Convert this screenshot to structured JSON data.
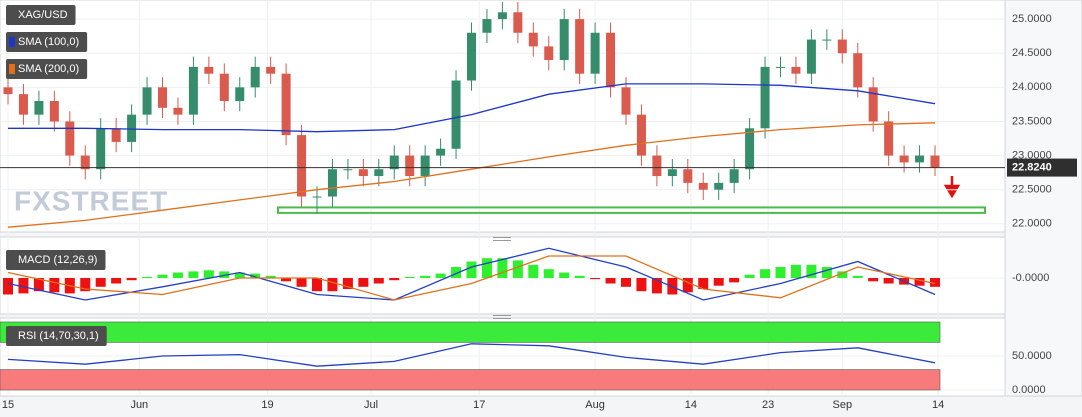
{
  "chart_data": [
    {
      "type": "candlestick",
      "title": "XAG/USD",
      "watermark": "FXSTREET",
      "open": [
        24.0,
        23.9,
        23.6,
        23.8,
        23.5,
        23.0,
        22.8,
        23.4,
        23.2,
        23.6,
        24.0,
        23.7,
        23.6,
        24.3,
        24.2,
        23.8,
        24.0,
        24.3,
        24.2,
        23.3,
        22.4,
        22.4,
        22.8,
        22.8,
        22.7,
        22.8,
        23.0,
        22.7,
        23.0,
        23.1,
        24.1,
        24.8,
        25.0,
        25.1,
        24.8,
        24.6,
        24.4,
        25.0,
        24.2,
        24.8,
        24.0,
        23.6,
        23.0,
        22.7,
        22.8,
        22.6,
        22.5,
        22.6,
        22.8,
        23.4,
        24.3,
        24.3,
        24.2,
        24.7,
        24.7,
        24.5,
        24.0,
        23.5,
        23.0,
        22.9,
        23.0
      ],
      "high": [
        24.15,
        24.05,
        23.95,
        23.95,
        23.65,
        23.15,
        23.55,
        23.55,
        23.75,
        24.15,
        24.15,
        23.85,
        24.45,
        24.45,
        24.35,
        24.15,
        24.45,
        24.45,
        24.35,
        23.45,
        22.55,
        22.95,
        22.95,
        22.95,
        22.95,
        23.15,
        23.15,
        23.15,
        23.25,
        24.25,
        24.95,
        25.15,
        25.25,
        25.25,
        24.95,
        24.75,
        25.15,
        25.15,
        24.95,
        24.95,
        24.15,
        23.75,
        23.15,
        22.95,
        22.95,
        22.75,
        22.75,
        22.95,
        23.55,
        24.45,
        24.45,
        24.45,
        24.85,
        24.85,
        24.85,
        24.65,
        24.15,
        23.65,
        23.15,
        23.15,
        23.15
      ],
      "low": [
        23.75,
        23.45,
        23.45,
        23.35,
        22.85,
        22.65,
        22.65,
        23.05,
        23.05,
        23.45,
        23.55,
        23.45,
        23.45,
        24.05,
        23.65,
        23.65,
        23.85,
        24.05,
        23.15,
        22.25,
        22.15,
        22.25,
        22.65,
        22.55,
        22.55,
        22.65,
        22.55,
        22.55,
        22.85,
        22.95,
        23.95,
        24.65,
        24.85,
        24.65,
        24.45,
        24.25,
        24.25,
        24.05,
        24.05,
        23.85,
        23.45,
        22.85,
        22.55,
        22.55,
        22.45,
        22.35,
        22.35,
        22.45,
        22.65,
        23.25,
        24.15,
        24.05,
        24.05,
        24.55,
        24.35,
        23.85,
        23.35,
        22.85,
        22.75,
        22.75,
        22.7
      ],
      "close": [
        23.9,
        23.6,
        23.8,
        23.5,
        23.0,
        22.8,
        23.4,
        23.2,
        23.6,
        24.0,
        23.7,
        23.6,
        24.3,
        24.2,
        23.8,
        24.0,
        24.3,
        24.2,
        23.3,
        22.4,
        22.4,
        22.8,
        22.8,
        22.7,
        22.8,
        23.0,
        22.7,
        23.0,
        23.1,
        24.1,
        24.8,
        25.0,
        25.1,
        24.8,
        24.6,
        24.4,
        25.0,
        24.2,
        24.8,
        24.0,
        23.6,
        23.0,
        22.7,
        22.8,
        22.6,
        22.5,
        22.6,
        22.8,
        23.4,
        24.3,
        24.3,
        24.2,
        24.7,
        24.7,
        24.5,
        24.0,
        23.5,
        23.0,
        22.9,
        23.0,
        22.82
      ],
      "up_color": "#358d6c",
      "down_color": "#da5a4d",
      "series": [
        {
          "name": "SMA (100,0)",
          "color": "#1d35c8",
          "values": [
            23.4,
            23.4,
            23.38,
            23.38,
            23.35,
            23.38,
            23.6,
            23.9,
            24.05,
            24.05,
            24.03,
            23.95,
            23.76
          ]
        },
        {
          "name": "SMA (200,0)",
          "color": "#e0701c",
          "values": [
            21.95,
            22.05,
            22.2,
            22.35,
            22.5,
            22.62,
            22.8,
            22.98,
            23.15,
            23.28,
            23.38,
            23.45,
            23.48
          ]
        }
      ],
      "support_zone": [
        22.16,
        22.24
      ],
      "support_color": "#4cbb4c",
      "last_price": {
        "value": 22.824,
        "label": "22.8240"
      },
      "ylim": [
        21.88,
        25.28
      ],
      "yticks": [
        {
          "value": 22,
          "label": "22.0000"
        },
        {
          "value": 22.5,
          "label": "22.5000"
        },
        {
          "value": 23,
          "label": "23.0000"
        },
        {
          "value": 23.5,
          "label": "23.5000"
        },
        {
          "value": 24,
          "label": "24.0000"
        },
        {
          "value": 24.5,
          "label": "24.5000"
        },
        {
          "value": 25,
          "label": "25.0000"
        }
      ],
      "xticks": [
        {
          "value": 0,
          "label": "15"
        },
        {
          "value": 8.5,
          "label": "Jun"
        },
        {
          "value": 16.8,
          "label": "19"
        },
        {
          "value": 23.5,
          "label": "Jul"
        },
        {
          "value": 30.5,
          "label": "17"
        },
        {
          "value": 38,
          "label": "Aug"
        },
        {
          "value": 44.2,
          "label": "14"
        },
        {
          "value": 49.2,
          "label": "23"
        },
        {
          "value": 54,
          "label": "Sep"
        },
        {
          "value": 60.2,
          "label": "14"
        }
      ],
      "grid": true
    },
    {
      "type": "bar",
      "title": "MACD (12,26,9)",
      "values": [
        -0.15,
        -0.14,
        -0.12,
        -0.13,
        -0.14,
        -0.12,
        -0.08,
        -0.05,
        -0.02,
        0.01,
        0.03,
        0.05,
        0.06,
        0.07,
        0.06,
        0.05,
        0.04,
        0.02,
        -0.03,
        -0.08,
        -0.12,
        -0.12,
        -0.1,
        -0.08,
        -0.05,
        -0.02,
        0.01,
        0.02,
        0.04,
        0.1,
        0.15,
        0.18,
        0.18,
        0.16,
        0.12,
        0.08,
        0.05,
        0.02,
        -0.01,
        -0.05,
        -0.08,
        -0.12,
        -0.14,
        -0.15,
        -0.13,
        -0.1,
        -0.07,
        -0.04,
        0.03,
        0.08,
        0.1,
        0.12,
        0.12,
        0.1,
        0.06,
        0.02,
        -0.03,
        -0.05,
        -0.06,
        -0.07,
        -0.08
      ],
      "up_color": "#2ef02e",
      "down_color": "#ee1111",
      "series": [
        {
          "color": "#2340c4",
          "values": [
            -0.05,
            -0.2,
            -0.08,
            0.05,
            -0.15,
            -0.2,
            0.1,
            0.27,
            0.1,
            -0.2,
            -0.05,
            0.15,
            -0.15
          ]
        },
        {
          "color": "#e0701c",
          "values": [
            0.05,
            -0.1,
            -0.15,
            0.0,
            0.0,
            -0.2,
            -0.05,
            0.2,
            0.2,
            -0.1,
            -0.18,
            0.1,
            -0.05
          ]
        }
      ],
      "ylim": [
        -0.3,
        0.3
      ],
      "yticks": [
        {
          "value": 0,
          "label": "-0.0000"
        }
      ]
    },
    {
      "type": "line",
      "title": "RSI (14,70,30,1)",
      "series": [
        {
          "color": "#2340c4",
          "values": [
            45,
            38,
            50,
            52,
            35,
            42,
            68,
            65,
            48,
            38,
            55,
            62,
            40
          ]
        }
      ],
      "bands": [
        {
          "range": [
            70,
            100
          ],
          "color": "#3bea3b"
        },
        {
          "range": [
            0,
            30
          ],
          "color": "#f77b7b"
        }
      ],
      "ylim": [
        0,
        100
      ],
      "yticks": [
        {
          "value": 50,
          "label": "50.0000"
        },
        {
          "value": 0,
          "label": "0.0000"
        }
      ]
    }
  ]
}
